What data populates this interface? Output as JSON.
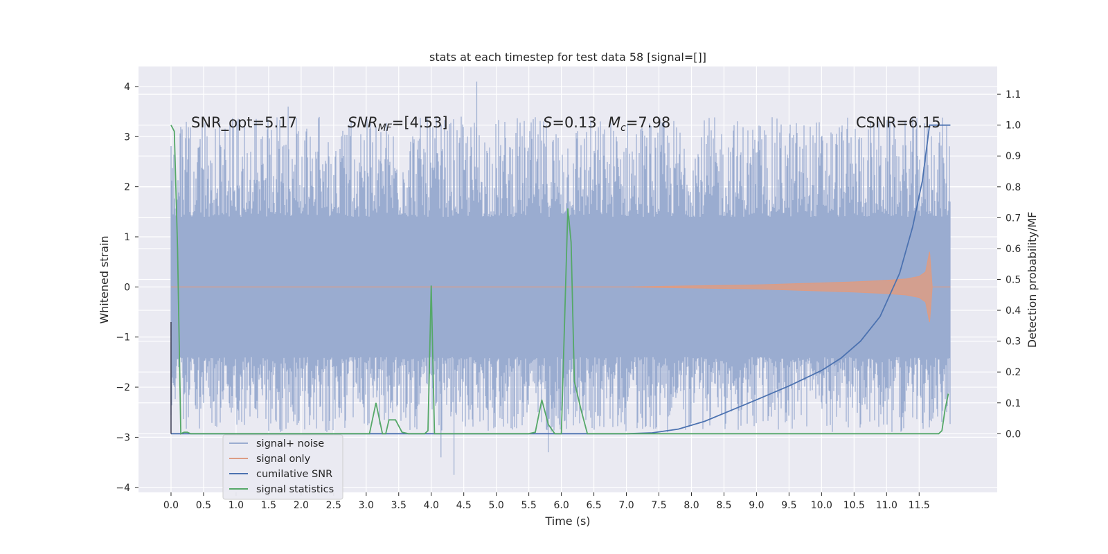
{
  "chart_data": {
    "type": "line",
    "title": "stats at each timestep for test data 58 [signal=[]]",
    "xlabel": "Time (s)",
    "ylabel": "Whitened strain",
    "ylabel_right": "Detection probability/MF",
    "xlim": [
      -0.5,
      12.7
    ],
    "ylim": [
      -4.1,
      4.4
    ],
    "ylim_right": [
      -0.19,
      1.19
    ],
    "x_ticks": [
      "0.0",
      "0.5",
      "1.0",
      "1.5",
      "2.0",
      "2.5",
      "3.0",
      "3.5",
      "4.0",
      "4.5",
      "5.0",
      "5.5",
      "6.0",
      "6.5",
      "7.0",
      "7.5",
      "8.0",
      "8.5",
      "9.0",
      "9.5",
      "10.0",
      "10.5",
      "11.0",
      "11.5"
    ],
    "y_ticks": [
      "4",
      "3",
      "2",
      "1",
      "0",
      "−1",
      "−2",
      "−3",
      "−4"
    ],
    "y_ticks_right": [
      "1.1",
      "1.0",
      "0.9",
      "0.8",
      "0.7",
      "0.6",
      "0.5",
      "0.4",
      "0.3",
      "0.2",
      "0.1",
      "0.0"
    ],
    "grid": true,
    "legend_placement": "lower-left",
    "annotations": {
      "snr_opt": "SNR_opt=5.17",
      "snr_mf_sym": "SNR",
      "snr_mf_sub": "MF",
      "snr_mf_val": "=[4.53]",
      "s_sym": "S",
      "s_val": "=0.13",
      "mc_sym": "M",
      "mc_sub": "c",
      "mc_val": "=7.98",
      "csnr": "CSNR=6.15"
    },
    "series": [
      {
        "name": "signal+ noise",
        "axis": "left",
        "color": "#9aacd0",
        "x_range": [
          0.0,
          11.98
        ],
        "band_inner": [
          -1.4,
          1.4
        ],
        "typical_extremes": [
          -2.9,
          3.4
        ],
        "notable_peaks": [
          [
            4.7,
            4.1
          ],
          [
            1.8,
            3.6
          ],
          [
            4.35,
            -3.75
          ],
          [
            5.8,
            -3.3
          ],
          [
            4.15,
            -3.4
          ]
        ]
      },
      {
        "name": "signal only",
        "axis": "left",
        "color": "#dd9c84",
        "x": [
          0.0,
          7.0,
          8.0,
          9.0,
          9.5,
          10.0,
          10.5,
          11.0,
          11.3,
          11.5,
          11.6,
          11.66,
          11.7,
          11.98
        ],
        "envelope": [
          0.0,
          0.0,
          0.02,
          0.04,
          0.06,
          0.08,
          0.1,
          0.13,
          0.16,
          0.21,
          0.3,
          0.7,
          0.0,
          0.0
        ]
      },
      {
        "name": "cumilative SNR",
        "axis": "right",
        "color": "#4c72b0",
        "x": [
          0.0,
          7.0,
          7.4,
          7.8,
          8.2,
          8.6,
          9.0,
          9.5,
          10.0,
          10.3,
          10.6,
          10.9,
          11.2,
          11.4,
          11.55,
          11.66,
          11.7,
          11.98
        ],
        "values": [
          0.0,
          0.0,
          0.003,
          0.015,
          0.04,
          0.075,
          0.11,
          0.155,
          0.205,
          0.245,
          0.3,
          0.38,
          0.52,
          0.67,
          0.82,
          1.0,
          1.0,
          1.0
        ]
      },
      {
        "name": "signal statistics",
        "axis": "right",
        "color": "#55a868",
        "x": [
          0.0,
          0.05,
          0.1,
          0.15,
          0.2,
          0.25,
          0.3,
          0.4,
          3.0,
          3.05,
          3.15,
          3.25,
          3.3,
          3.35,
          3.45,
          3.55,
          3.65,
          3.9,
          3.95,
          4.0,
          4.05,
          4.1,
          5.5,
          5.6,
          5.7,
          5.8,
          5.9,
          6.0,
          6.1,
          6.15,
          6.2,
          6.3,
          6.4,
          6.5,
          8.0,
          11.8,
          11.85,
          11.9,
          11.95
        ],
        "values": [
          1.0,
          0.98,
          0.6,
          0.0,
          0.005,
          0.005,
          0.0,
          0.0,
          0.0,
          0.0,
          0.1,
          0.0,
          0.0,
          0.045,
          0.045,
          0.005,
          0.0,
          0.0,
          0.01,
          0.48,
          0.0,
          0.0,
          0.0,
          0.005,
          0.11,
          0.03,
          0.0,
          0.0,
          0.73,
          0.62,
          0.17,
          0.08,
          0.0,
          0.0,
          0.0,
          0.0,
          0.01,
          0.08,
          0.13
        ]
      }
    ]
  }
}
